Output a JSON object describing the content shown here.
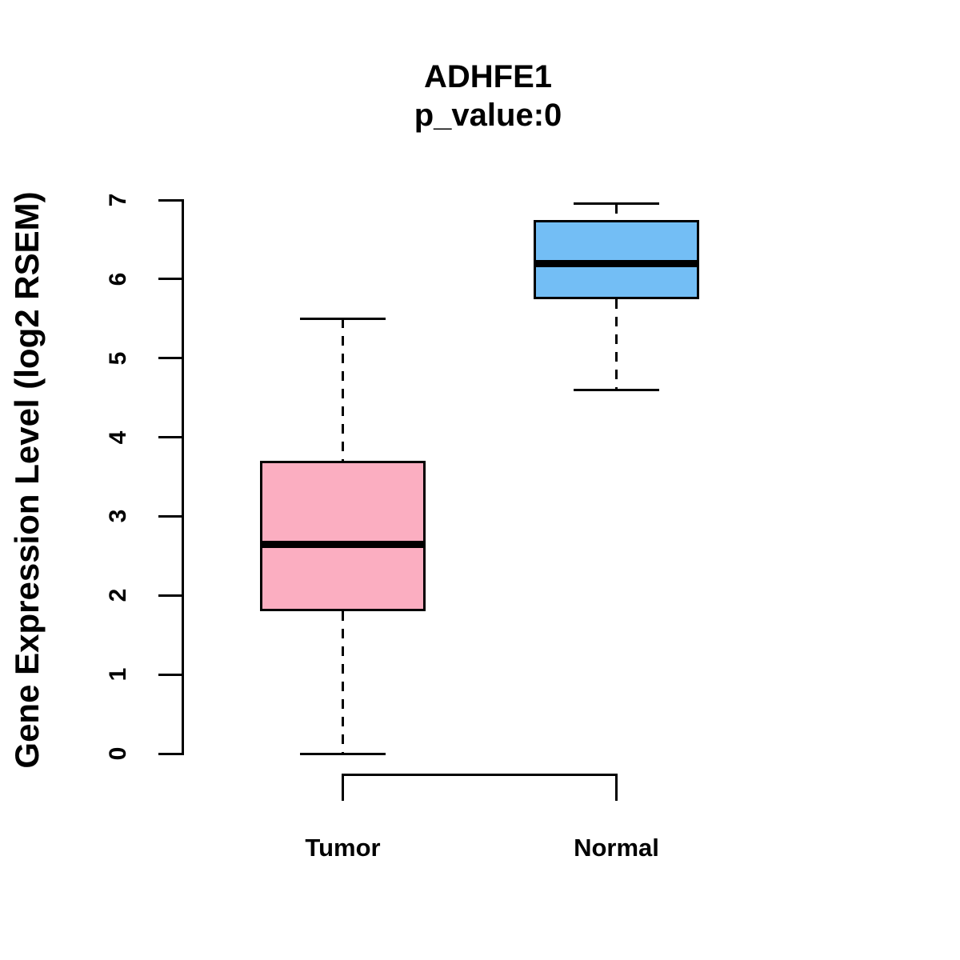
{
  "chart_data": {
    "type": "boxplot",
    "title": "ADHFE1",
    "subtitle": "p_value:0",
    "ylabel": "Gene Expression Level (log2 RSEM)",
    "xlabel": "",
    "ylim": [
      0,
      7
    ],
    "yticks": [
      0,
      1,
      2,
      3,
      4,
      5,
      6,
      7
    ],
    "categories": [
      "Tumor",
      "Normal"
    ],
    "groups": [
      {
        "label": "Tumor",
        "fill_color": "#FBAEC1",
        "whisker_low": 0,
        "q1": 1.8,
        "median": 2.65,
        "q3": 3.7,
        "whisker_high": 5.5
      },
      {
        "label": "Normal",
        "fill_color": "#73BEF5",
        "whisker_low": 4.6,
        "q1": 5.75,
        "median": 6.2,
        "q3": 6.75,
        "whisker_high": 6.95
      }
    ],
    "line_color": "#000000",
    "whisker_style": "dashed",
    "grid": false,
    "legend": "none"
  }
}
